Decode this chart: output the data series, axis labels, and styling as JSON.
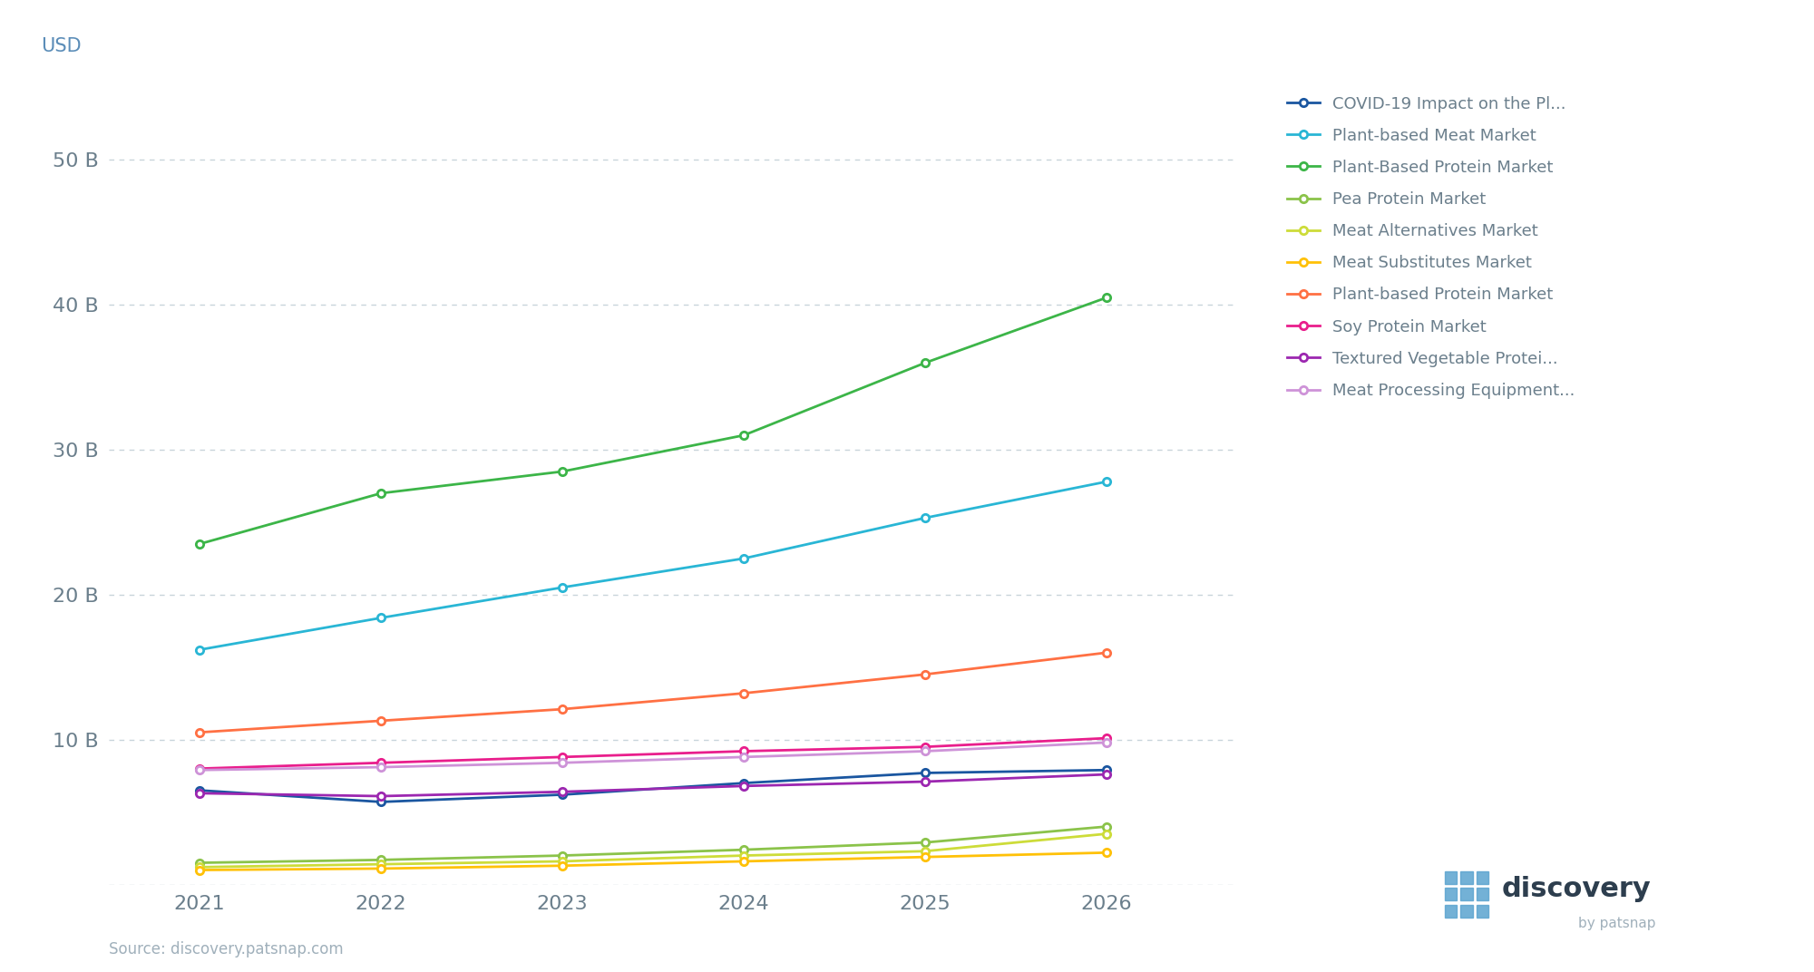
{
  "years": [
    2021,
    2022,
    2023,
    2024,
    2025,
    2026
  ],
  "series": [
    {
      "name": "COVID-19 Impact on the Pl...",
      "color": "#1a56a0",
      "values": [
        6.5,
        5.7,
        6.2,
        7.0,
        7.7,
        7.9
      ]
    },
    {
      "name": "Plant-based Meat Market",
      "color": "#29b6d5",
      "values": [
        16.2,
        18.4,
        20.5,
        22.5,
        25.3,
        27.8
      ]
    },
    {
      "name": "Plant-Based Protein Market",
      "color": "#3cb548",
      "values": [
        23.5,
        27.0,
        28.5,
        31.0,
        36.0,
        40.5
      ]
    },
    {
      "name": "Pea Protein Market",
      "color": "#8bc34a",
      "values": [
        1.5,
        1.7,
        2.0,
        2.4,
        2.9,
        4.0
      ]
    },
    {
      "name": "Meat Alternatives Market",
      "color": "#cddc39",
      "values": [
        1.2,
        1.4,
        1.6,
        2.0,
        2.3,
        3.5
      ]
    },
    {
      "name": "Meat Substitutes Market",
      "color": "#ffc107",
      "values": [
        1.0,
        1.1,
        1.3,
        1.6,
        1.9,
        2.2
      ]
    },
    {
      "name": "Plant-based Protein Market",
      "color": "#ff7043",
      "values": [
        10.5,
        11.3,
        12.1,
        13.2,
        14.5,
        16.0
      ]
    },
    {
      "name": "Soy Protein Market",
      "color": "#e91e8c",
      "values": [
        8.0,
        8.4,
        8.8,
        9.2,
        9.5,
        10.1
      ]
    },
    {
      "name": "Textured Vegetable Protei...",
      "color": "#9c27b0",
      "values": [
        6.3,
        6.1,
        6.4,
        6.8,
        7.1,
        7.6
      ]
    },
    {
      "name": "Meat Processing Equipment...",
      "color": "#ce93d8",
      "values": [
        7.9,
        8.1,
        8.4,
        8.8,
        9.2,
        9.8
      ]
    }
  ],
  "yticks": [
    0,
    10,
    20,
    30,
    40,
    50
  ],
  "ytick_labels": [
    "",
    "10 B",
    "20 B",
    "30 B",
    "40 B",
    "50 B"
  ],
  "ylabel": "USD",
  "xlim": [
    2020.5,
    2026.7
  ],
  "ylim": [
    0,
    55
  ],
  "background_color": "#ffffff",
  "source_text": "Source: discovery.patsnap.com",
  "grid_color": "#c8d4db",
  "axis_label_color": "#6b7f8c"
}
